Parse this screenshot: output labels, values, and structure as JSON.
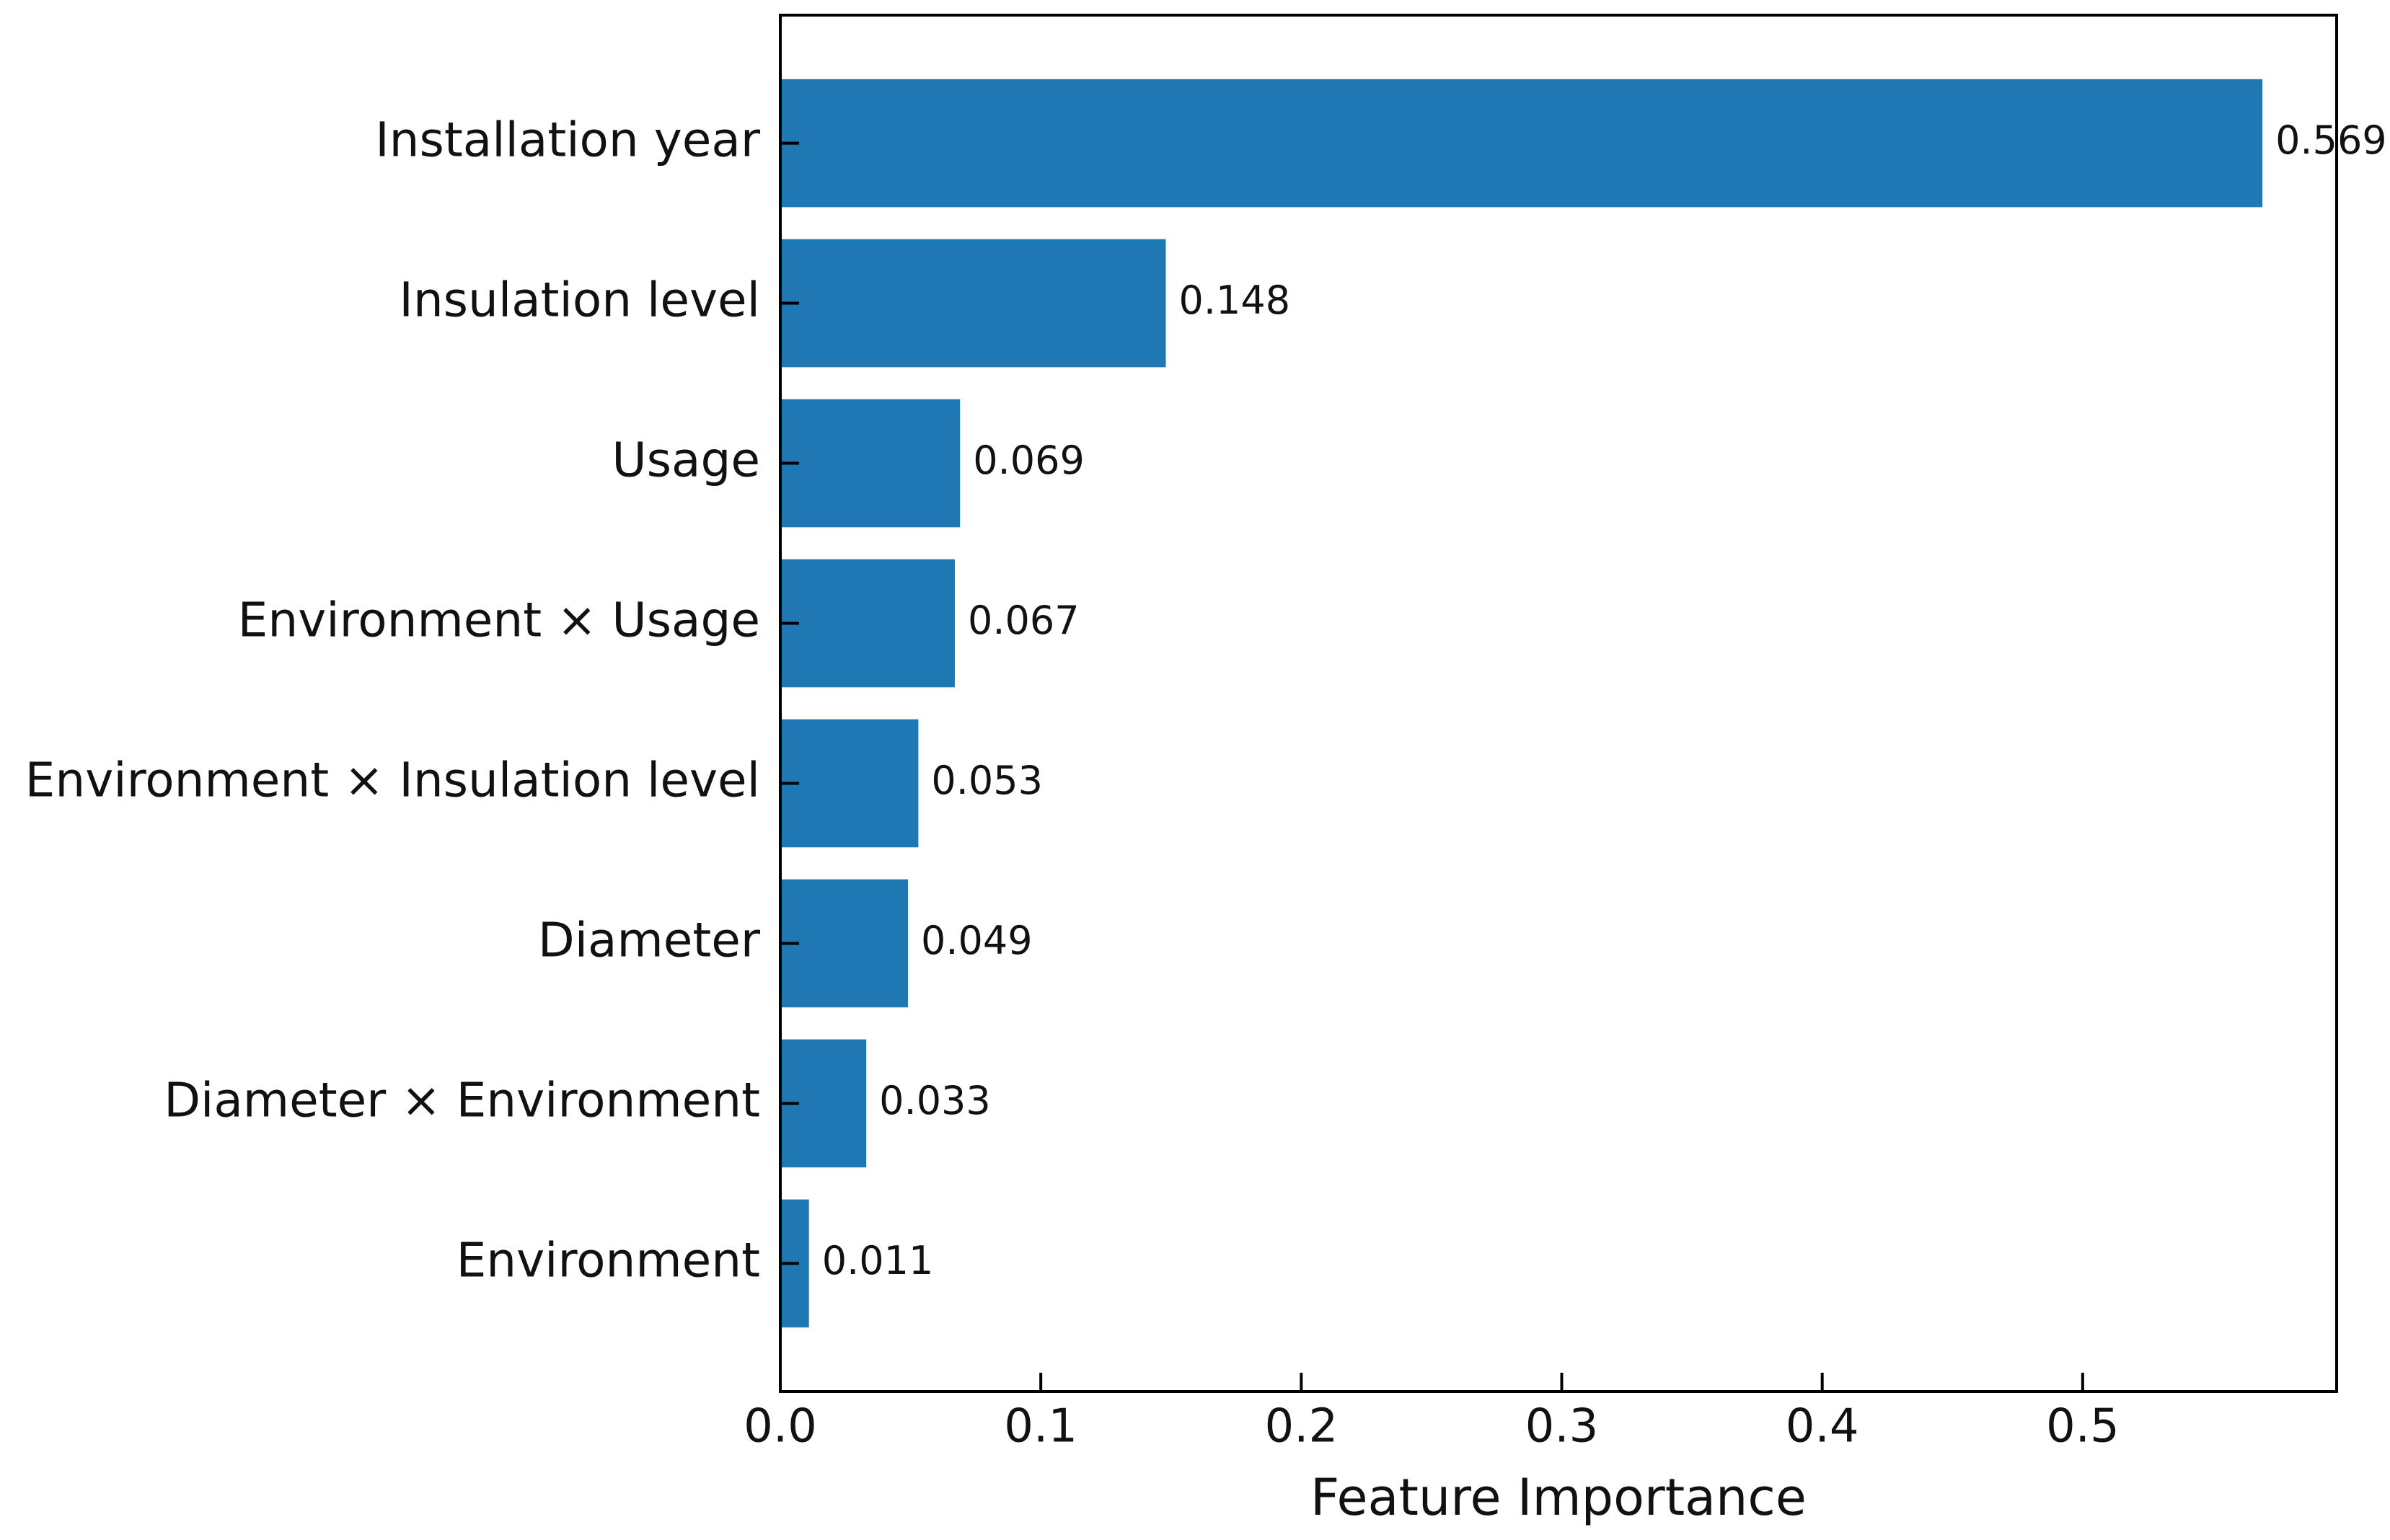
{
  "chart_data": {
    "type": "barh",
    "xlabel": "Feature Importance",
    "categories": [
      "Installation year",
      "Insulation level",
      "Usage",
      "Environment × Usage",
      "Environment × Insulation level",
      "Diameter",
      "Diameter × Environment",
      "Environment"
    ],
    "values": [
      0.569,
      0.148,
      0.069,
      0.067,
      0.053,
      0.049,
      0.033,
      0.011
    ],
    "color": "#1f77b4",
    "xlim": [
      0,
      0.5975
    ],
    "xticks": [
      {
        "value": 0,
        "label": "0.0"
      },
      0.1,
      0.2,
      0.3,
      0.4,
      0.5
    ]
  }
}
